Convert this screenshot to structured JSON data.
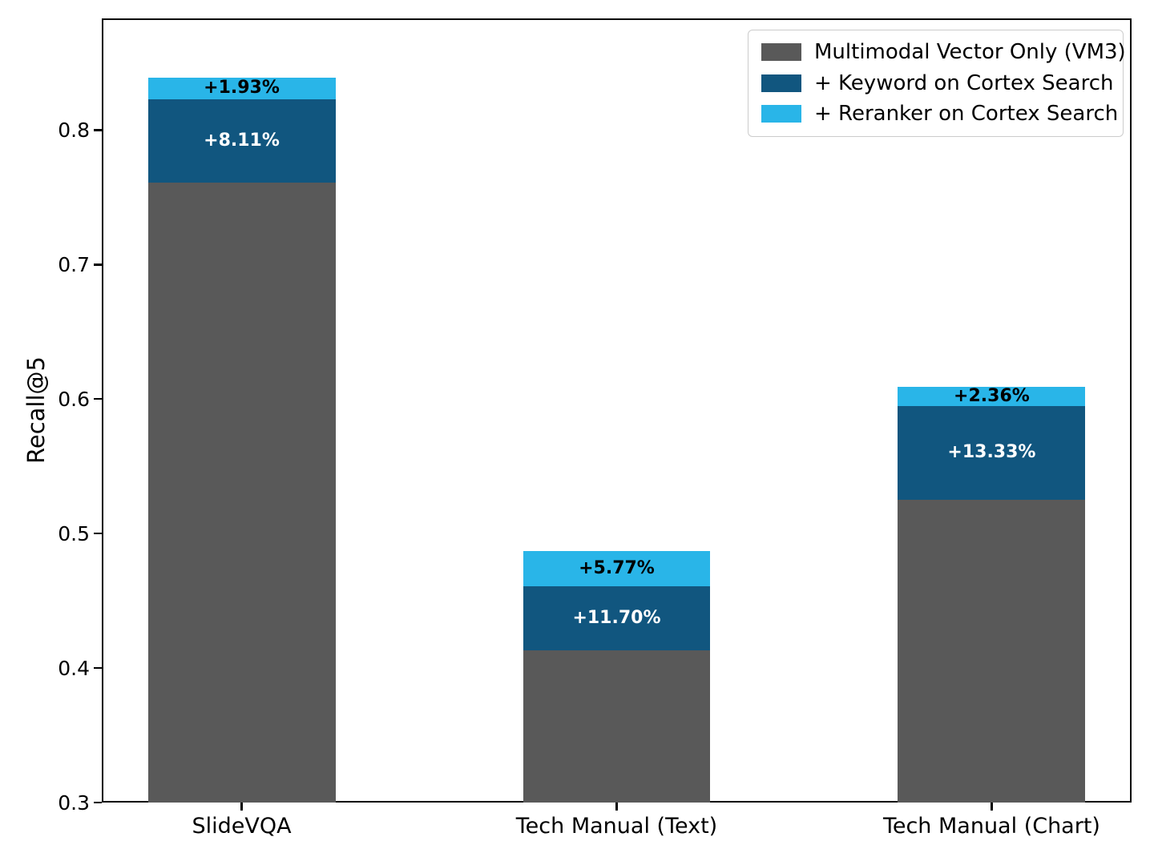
{
  "chart_data": {
    "type": "bar",
    "stacked": true,
    "title": "",
    "xlabel": "",
    "ylabel": "Recall@5",
    "categories": [
      "SlideVQA",
      "Tech Manual (Text)",
      "Tech Manual (Chart)"
    ],
    "series": [
      {
        "name": "Multimodal Vector Only (VM3)",
        "color": "#595959",
        "values": [
          0.761,
          0.413,
          0.525
        ]
      },
      {
        "name": "+ Keyword on Cortex Search",
        "color": "#11567F",
        "cumulative_values": [
          0.823,
          0.461,
          0.595
        ],
        "gain_labels": [
          "+8.11%",
          "+11.70%",
          "+13.33%"
        ],
        "label_color": "#ffffff"
      },
      {
        "name": "+ Reranker on Cortex Search",
        "color": "#29B5E8",
        "cumulative_values": [
          0.839,
          0.487,
          0.609
        ],
        "gain_labels": [
          "+1.93%",
          "+5.77%",
          "+2.36%"
        ],
        "label_color": "#000000"
      }
    ],
    "ylim": [
      0.3,
      0.883
    ],
    "yticks": [
      0.3,
      0.4,
      0.5,
      0.6,
      0.7,
      0.8
    ],
    "ytick_labels": [
      "0.3",
      "0.4",
      "0.5",
      "0.6",
      "0.7",
      "0.8"
    ],
    "grid": false,
    "legend_position": "upper right",
    "colors": {
      "axis": "#000000",
      "background": "#ffffff",
      "legend_border": "#cccccc"
    }
  }
}
